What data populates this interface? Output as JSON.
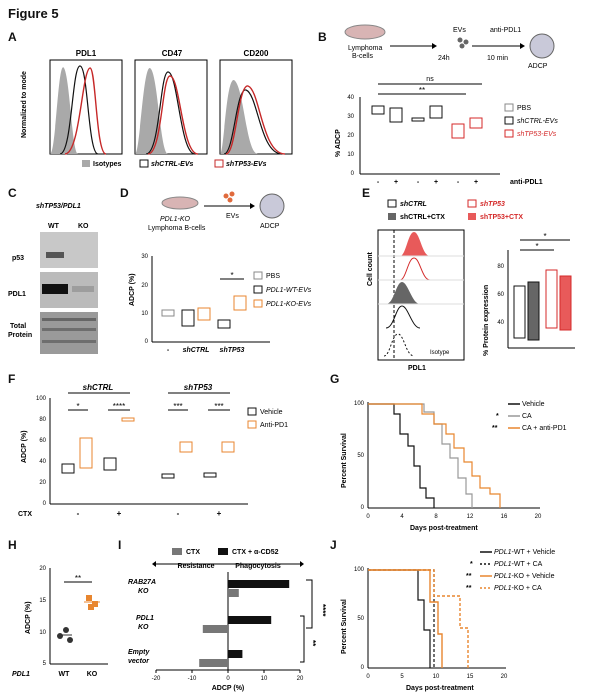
{
  "figure_title": "Figure 5",
  "colors": {
    "orange": "#e8862f",
    "red": "#d42a2a",
    "gray": "#9a9a9a",
    "dark": "#555555",
    "black": "#111111"
  },
  "panel_a": {
    "label": "A",
    "ylabel": "Normalized to mode",
    "hist_titles": [
      "PDL1",
      "CD47",
      "CD200"
    ],
    "legend": [
      "Isotypes",
      "shCTRL-EVs",
      "shTP53-EVs"
    ]
  },
  "panel_b": {
    "label": "B",
    "schematic": {
      "cells": "Lymphoma\nB-cells",
      "evs": "EVs",
      "time1": "24h",
      "anti": "anti-PDL1",
      "time2": "10 min",
      "assay": "ADCP"
    },
    "ylabel": "% ADCP",
    "yticks": [
      "40",
      "30",
      "20",
      "10",
      "0"
    ],
    "sig": [
      "ns",
      "**"
    ],
    "xsigns": [
      "-",
      "+",
      "-",
      "+",
      "-",
      "+"
    ],
    "xlabel": "anti-PDL1",
    "legend": [
      "PBS",
      "shCTRL-EVs",
      "shTP53-EVs"
    ]
  },
  "panel_c": {
    "label": "C",
    "title": "shTP53/PDL1",
    "lanes": [
      "WT",
      "KO"
    ],
    "rows": [
      "p53",
      "PDL1",
      "Total\nProtein"
    ]
  },
  "panel_d": {
    "label": "D",
    "schematic": {
      "ko": "PDL1-KO",
      "cells": "Lymphoma B-cells",
      "evs": "EVs",
      "assay": "ADCP"
    },
    "ylabel": "ADCP (%)",
    "yticks": [
      "30",
      "20",
      "10",
      "0"
    ],
    "sig": "*",
    "xlabels": [
      "-",
      "shCTRL",
      "shTP53"
    ],
    "legend": [
      "PBS",
      "PDL1-WT-EVs",
      "PDL1-KO-EVs"
    ]
  },
  "panel_e": {
    "label": "E",
    "legend_left": [
      "shCTRL",
      "shCTRL+CTX"
    ],
    "legend_right": [
      "shTP53",
      "shTP53+CTX"
    ],
    "ylabel_left": "Cell count",
    "xlabel_left": "PDL1",
    "isotype": "Isotype",
    "ylabel_right": "% Protein expression",
    "yticks": [
      "80",
      "60",
      "40"
    ],
    "sig": [
      "*",
      "*"
    ]
  },
  "panel_f": {
    "label": "F",
    "groups": [
      "shCTRL",
      "shTP53"
    ],
    "ylabel": "ADCP (%)",
    "yticks": [
      "100",
      "80",
      "60",
      "40",
      "20",
      "0"
    ],
    "sig": [
      "*",
      "****",
      "***",
      "***"
    ],
    "ctx_label": "CTX",
    "ctx_signs": [
      "-",
      "+",
      "-",
      "+"
    ],
    "legend": [
      "Vehicle",
      "Anti-PD1"
    ]
  },
  "panel_g": {
    "label": "G",
    "ylabel": "Percent Survival",
    "xlabel": "Days post-treatment",
    "yticks": [
      "100",
      "50",
      "0"
    ],
    "xticks": [
      "0",
      "4",
      "8",
      "12",
      "16",
      "20"
    ],
    "legend": [
      "Vehicle",
      "CA",
      "CA + anti-PD1"
    ],
    "legend_sig": [
      "",
      "*",
      "**"
    ]
  },
  "panel_h": {
    "label": "H",
    "ylabel": "ADCP (%)",
    "yticks": [
      "20",
      "15",
      "10",
      "5"
    ],
    "sig": "**",
    "gene": "PDL1",
    "xlabels": [
      "WT",
      "KO"
    ]
  },
  "panel_i": {
    "label": "I",
    "legend": [
      "CTX",
      "CTX + α-CD52"
    ],
    "headers": [
      "Resistance",
      "Phagocytosis"
    ],
    "rows": [
      "RAB27A\nKO",
      "PDL1\nKO",
      "Empty\nvector"
    ],
    "xticks": [
      "-20",
      "-10",
      "0",
      "10",
      "20"
    ],
    "xlabel": "ADCP (%)",
    "sig": [
      "****",
      "**"
    ],
    "chart_data": {
      "type": "bar",
      "categories": [
        "RAB27A KO",
        "PDL1 KO",
        "Empty vector"
      ],
      "series": [
        {
          "name": "CTX",
          "values": [
            3,
            -7,
            -8
          ]
        },
        {
          "name": "CTX + α-CD52",
          "values": [
            17,
            12,
            4
          ]
        }
      ],
      "xlim": [
        -20,
        20
      ]
    }
  },
  "panel_j": {
    "label": "J",
    "ylabel": "Percent Survival",
    "xlabel": "Days post-treatment",
    "yticks": [
      "100",
      "50",
      "0"
    ],
    "xticks": [
      "0",
      "5",
      "10",
      "15",
      "20"
    ],
    "legend": [
      "PDL1-WT + Vehicle",
      "PDL1-WT + CA",
      "PDL1-KO + Vehicle",
      "PDL1-KO + CA"
    ],
    "legend_sig": [
      "",
      "*",
      "**",
      "**"
    ]
  }
}
